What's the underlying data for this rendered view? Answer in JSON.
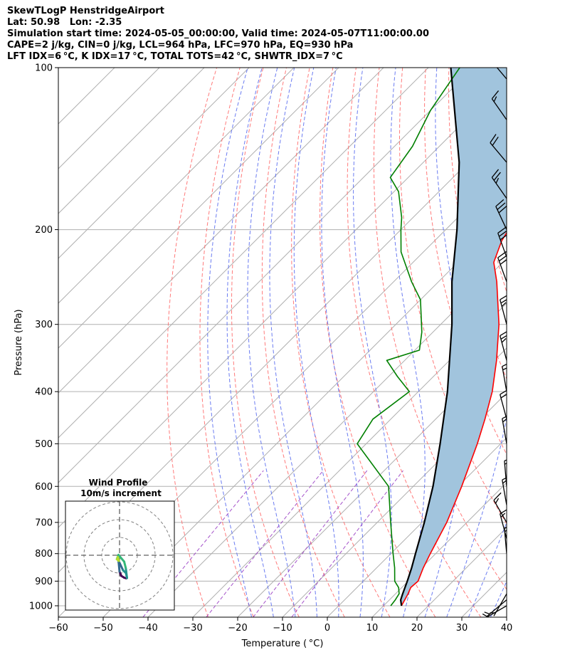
{
  "header": {
    "lines": [
      "SkewTLogP HenstridgeAirport",
      "Lat: 50.98   Lon: -2.35",
      "Simulation start time: 2024-05-05_00:00:00, Valid time: 2024-05-07T11:00:00.00",
      "CAPE=2 j/kg, CIN=0 j/kg, LCL=964 hPa, LFC=970 hPa, EQ=930 hPa",
      "LFT IDX=6 °C, K IDX=17 °C, TOTAL TOTS=42 °C, SHWTR_IDX=7 °C"
    ]
  },
  "chart_data": {
    "type": "line",
    "xlabel": "Temperature ( °C)",
    "ylabel": "Pressure (hPa)",
    "xlim": [
      -60,
      40
    ],
    "ylim": [
      1050,
      100
    ],
    "yscale": "log",
    "x_ticks": [
      -60,
      -50,
      -40,
      -30,
      -20,
      -10,
      0,
      10,
      20,
      30,
      40
    ],
    "x_tick_labels": [
      "−60",
      "−50",
      "−40",
      "−30",
      "−20",
      "−10",
      "0",
      "10",
      "20",
      "30",
      "40"
    ],
    "y_ticks": [
      1000,
      900,
      800,
      700,
      600,
      500,
      400,
      300,
      200,
      100
    ],
    "y_tick_labels": [
      "1000",
      "900",
      "800",
      "700",
      "600",
      "500",
      "400",
      "300",
      "200",
      "100"
    ],
    "grid": true,
    "series": [
      {
        "role": "temperature",
        "color": "#ff0000",
        "points": [
          [
            1000,
            14
          ],
          [
            975,
            13.4
          ],
          [
            950,
            12.8
          ],
          [
            925,
            12.0
          ],
          [
            900,
            12.2
          ],
          [
            850,
            10.4
          ],
          [
            800,
            8.8
          ],
          [
            700,
            5.5
          ],
          [
            600,
            0.8
          ],
          [
            500,
            -5.2
          ],
          [
            450,
            -9.0
          ],
          [
            400,
            -13.5
          ],
          [
            350,
            -19.5
          ],
          [
            300,
            -27
          ],
          [
            250,
            -37
          ],
          [
            230,
            -42
          ],
          [
            210,
            -45
          ],
          [
            200,
            -46
          ],
          [
            185,
            -49
          ],
          [
            165,
            -52.5
          ],
          [
            150,
            -55
          ],
          [
            130,
            -58
          ],
          [
            117,
            -60
          ],
          [
            105,
            -62
          ],
          [
            100,
            -63
          ]
        ]
      },
      {
        "role": "dewpoint",
        "color": "#008000",
        "points": [
          [
            1000,
            11.6
          ],
          [
            975,
            11.3
          ],
          [
            950,
            10.8
          ],
          [
            925,
            9.3
          ],
          [
            900,
            7.0
          ],
          [
            850,
            4.0
          ],
          [
            800,
            0.5
          ],
          [
            700,
            -7
          ],
          [
            600,
            -15.5
          ],
          [
            500,
            -32
          ],
          [
            450,
            -34
          ],
          [
            400,
            -32
          ],
          [
            375,
            -38
          ],
          [
            350,
            -44
          ],
          [
            335,
            -39
          ],
          [
            310,
            -42.5
          ],
          [
            270,
            -50
          ],
          [
            250,
            -56
          ],
          [
            220,
            -65
          ],
          [
            200,
            -70
          ],
          [
            190,
            -72.5
          ],
          [
            170,
            -79
          ],
          [
            160,
            -84
          ],
          [
            140,
            -86
          ],
          [
            120,
            -90
          ],
          [
            100,
            -93
          ]
        ]
      },
      {
        "role": "parcel",
        "color": "#000000",
        "points": [
          [
            1000,
            14
          ],
          [
            975,
            12.5
          ],
          [
            950,
            11.6
          ],
          [
            900,
            9.8
          ],
          [
            850,
            7.8
          ],
          [
            800,
            5.5
          ],
          [
            700,
            0.5
          ],
          [
            600,
            -5.6
          ],
          [
            500,
            -13.5
          ],
          [
            400,
            -23.5
          ],
          [
            300,
            -37.5
          ],
          [
            250,
            -47
          ],
          [
            200,
            -57.5
          ],
          [
            150,
            -72
          ],
          [
            100,
            -95
          ]
        ]
      }
    ],
    "cape_shading_color": "#a1c4dd",
    "isotherm_color": "#b0b0b0",
    "dry_adiabat_color": "#ff6b6b",
    "moist_adiabat_color": "#5b6ef0",
    "mixing_ratio_color": "#9a3fc4",
    "wind_barbs": {
      "color": "#000000",
      "barbs": [
        {
          "p": 1000,
          "speed_kt": 5,
          "dir": 240
        },
        {
          "p": 975,
          "speed_kt": 5,
          "dir": 230
        },
        {
          "p": 950,
          "speed_kt": 5,
          "dir": 210
        },
        {
          "p": 925,
          "speed_kt": 10,
          "dir": 160
        },
        {
          "p": 900,
          "speed_kt": 10,
          "dir": 120
        },
        {
          "p": 875,
          "speed_kt": 10,
          "dir": 80
        },
        {
          "p": 850,
          "speed_kt": 10,
          "dir": 40
        },
        {
          "p": 800,
          "speed_kt": 15,
          "dir": 355
        },
        {
          "p": 750,
          "speed_kt": 15,
          "dir": 345
        },
        {
          "p": 700,
          "speed_kt": 15,
          "dir": 330
        },
        {
          "p": 650,
          "speed_kt": 15,
          "dir": 350
        },
        {
          "p": 600,
          "speed_kt": 15,
          "dir": 355
        },
        {
          "p": 550,
          "speed_kt": 15,
          "dir": 5
        },
        {
          "p": 500,
          "speed_kt": 15,
          "dir": 350
        },
        {
          "p": 450,
          "speed_kt": 20,
          "dir": 345
        },
        {
          "p": 400,
          "speed_kt": 20,
          "dir": 350
        },
        {
          "p": 350,
          "speed_kt": 25,
          "dir": 345
        },
        {
          "p": 300,
          "speed_kt": 25,
          "dir": 345
        },
        {
          "p": 250,
          "speed_kt": 30,
          "dir": 340
        },
        {
          "p": 225,
          "speed_kt": 30,
          "dir": 340
        },
        {
          "p": 200,
          "speed_kt": 30,
          "dir": 335
        },
        {
          "p": 175,
          "speed_kt": 25,
          "dir": 325
        },
        {
          "p": 150,
          "speed_kt": 20,
          "dir": 320
        },
        {
          "p": 125,
          "speed_kt": 15,
          "dir": 325
        },
        {
          "p": 105,
          "speed_kt": 10,
          "dir": 320
        }
      ]
    },
    "hodograph": {
      "title": "Wind Profile",
      "subtitle": "10m/s increment",
      "rings_ms": [
        10,
        20,
        30
      ],
      "colormap": [
        "#440154",
        "#31688e",
        "#21918c",
        "#35b779",
        "#b5de2b"
      ],
      "path_uv": [
        [
          3.8,
          -13.0
        ],
        [
          2.6,
          -12.6
        ],
        [
          1.0,
          -11.6
        ],
        [
          0.0,
          -9.2
        ],
        [
          -0.5,
          -4.0
        ],
        [
          -0.6,
          -3.0
        ],
        [
          2.0,
          -8.5
        ],
        [
          3.6,
          -10.0
        ],
        [
          4.2,
          -12.8
        ],
        [
          3.5,
          -7.2
        ],
        [
          2.6,
          -3.6
        ],
        [
          -0.6,
          0.2
        ],
        [
          -1.5,
          -2.2
        ],
        [
          -0.4,
          -3.2
        ],
        [
          -1.0,
          -1.0
        ]
      ]
    }
  }
}
